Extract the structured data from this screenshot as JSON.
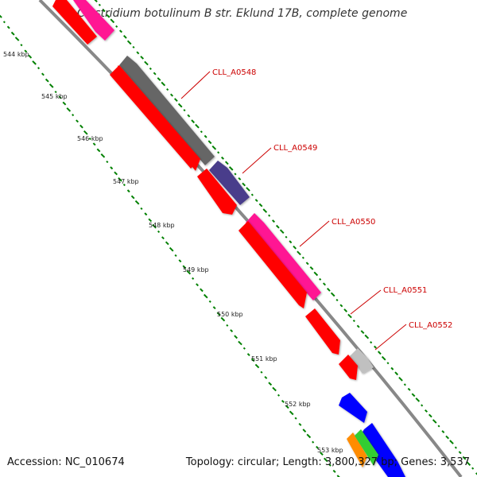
{
  "title": "Clostridium botulinum B str. Eklund 17B, complete genome",
  "footer": {
    "accession": "Accession: NC_010674",
    "summary": "Topology: circular; Length: 3,800,327 bp; Genes: 3,537"
  },
  "ticks": [
    "544 kbp",
    "545 kbp",
    "546 kbp",
    "547 kbp",
    "548 kbp",
    "549 kbp",
    "550 kbp",
    "551 kbp",
    "552 kbp",
    "553 kbp"
  ],
  "genes": [
    {
      "label": "CLL_A0548",
      "color": "#666666"
    },
    {
      "label": "CLL_A0549",
      "color": "#483d8b"
    },
    {
      "label": "CLL_A0550",
      "color": "#ff1493"
    },
    {
      "label": "CLL_A0551",
      "color": "#ff0000"
    },
    {
      "label": "CLL_A0552",
      "color": "#c0c0c0"
    }
  ],
  "colors": {
    "backbone": "#888888",
    "cds_minus": "#ff0000",
    "gc_dots": "#008000",
    "label": "#cc0000",
    "blue_cds": "#0000ff",
    "orange_cds": "#ff8c00",
    "green_cds": "#32cd32"
  }
}
